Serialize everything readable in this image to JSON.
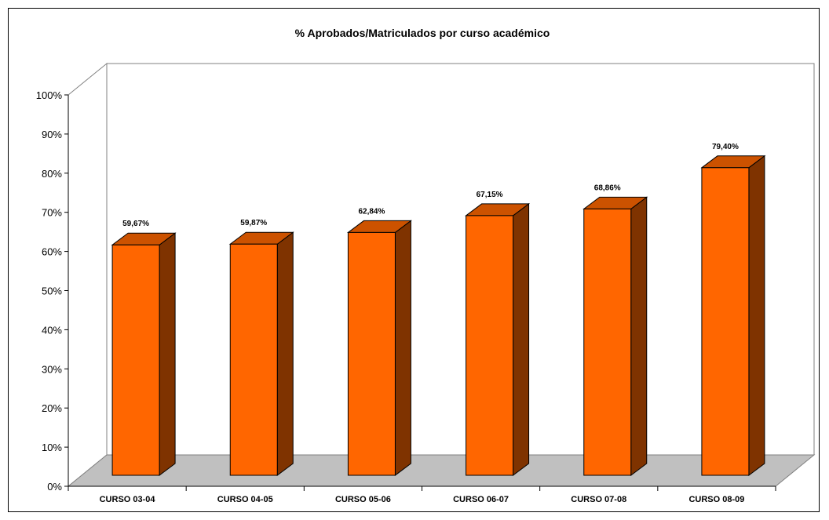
{
  "chart_data": {
    "type": "bar",
    "title": "% Aprobados/Matriculados por curso académico",
    "categories": [
      "CURSO 03-04",
      "CURSO 04-05",
      "CURSO 05-06",
      "CURSO 06-07",
      "CURSO 07-08",
      "CURSO 08-09"
    ],
    "values": [
      59.67,
      59.87,
      62.84,
      67.15,
      68.86,
      79.4
    ],
    "data_labels": [
      "59,67%",
      "59,87%",
      "62,84%",
      "67,15%",
      "68,86%",
      "79,40%"
    ],
    "y_ticks": [
      "0%",
      "10%",
      "20%",
      "30%",
      "40%",
      "50%",
      "60%",
      "70%",
      "80%",
      "90%",
      "100%"
    ],
    "ylim": [
      0,
      100
    ],
    "grid": false,
    "legend": "none",
    "colors": {
      "bar_front": "#FF6600",
      "bar_top": "#CC5200",
      "bar_side": "#7F3300",
      "floor": "#C0C0C0",
      "walls": "#FFFFFF"
    }
  }
}
